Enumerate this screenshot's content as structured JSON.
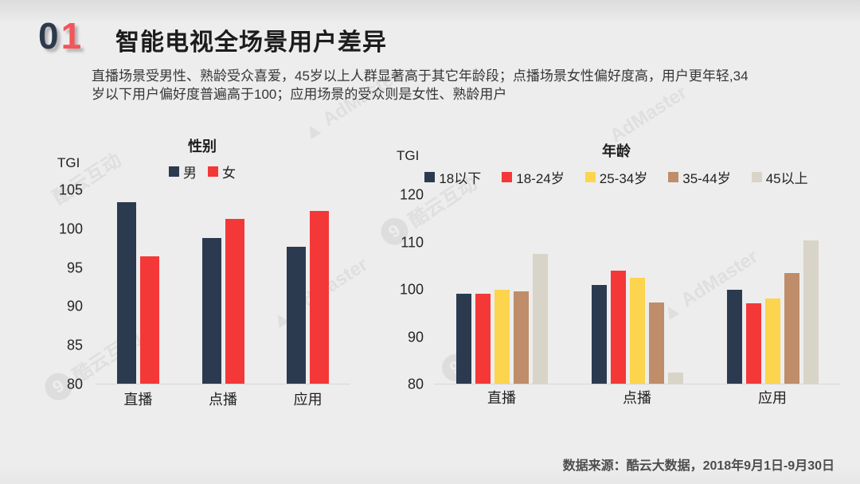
{
  "slide": {
    "section_digit_1": "0",
    "section_digit_2": "1",
    "title": "智能电视全场景用户差异",
    "subtitle_lines": [
      "直播场景受男性、熟龄受众喜爱，45岁以上人群显著高于其它年龄段；点播场景女性偏好度高，用户更年轻,34",
      "岁以下用户偏好度普遍高于100；应用场景的受众则是女性、熟龄用户"
    ],
    "footer": "数据来源：酷云大数据，2018年9月1日-9月30日"
  },
  "colors": {
    "navy": "#2b3a4f",
    "red": "#f43838",
    "yellow": "#fcd44e",
    "brown": "#bf8d69",
    "beige": "#d8d4c7",
    "background": "#ededed",
    "digit_zero": "#2d3a4d",
    "digit_one": "#f2555a"
  },
  "watermarks": {
    "admaster": "AdMaster",
    "kuyun": "酷云互动",
    "kuyun_logo_glyph": "9",
    "admaster_logo_glyph": "▲"
  },
  "chart_data": [
    {
      "type": "bar",
      "title": "性别",
      "ylabel": "TGI",
      "categories": [
        "直播",
        "点播",
        "应用"
      ],
      "series": [
        {
          "name": "男",
          "color": "#2b3a4f",
          "values": [
            103.5,
            98.8,
            97.7
          ]
        },
        {
          "name": "女",
          "color": "#f43838",
          "values": [
            96.5,
            101.3,
            102.3
          ]
        }
      ],
      "ylim": [
        80,
        105
      ],
      "yticks": [
        80,
        85,
        90,
        95,
        100,
        105
      ],
      "grid": false,
      "legend_position": "top"
    },
    {
      "type": "bar",
      "title": "年龄",
      "ylabel": "TGI",
      "categories": [
        "直播",
        "点播",
        "应用"
      ],
      "series": [
        {
          "name": "18以下",
          "color": "#2b3a4f",
          "values": [
            99,
            101,
            100
          ]
        },
        {
          "name": "18-24岁",
          "color": "#f43838",
          "values": [
            99,
            104,
            97
          ]
        },
        {
          "name": "25-34岁",
          "color": "#fcd44e",
          "values": [
            100,
            102.5,
            98
          ]
        },
        {
          "name": "35-44岁",
          "color": "#bf8d69",
          "values": [
            99.5,
            97.3,
            103.5
          ]
        },
        {
          "name": "45以上",
          "color": "#d8d4c7",
          "values": [
            107.5,
            82.3,
            110.3
          ]
        }
      ],
      "ylim": [
        80,
        120
      ],
      "yticks": [
        80,
        90,
        100,
        110,
        120
      ],
      "grid": false,
      "legend_position": "top"
    }
  ]
}
